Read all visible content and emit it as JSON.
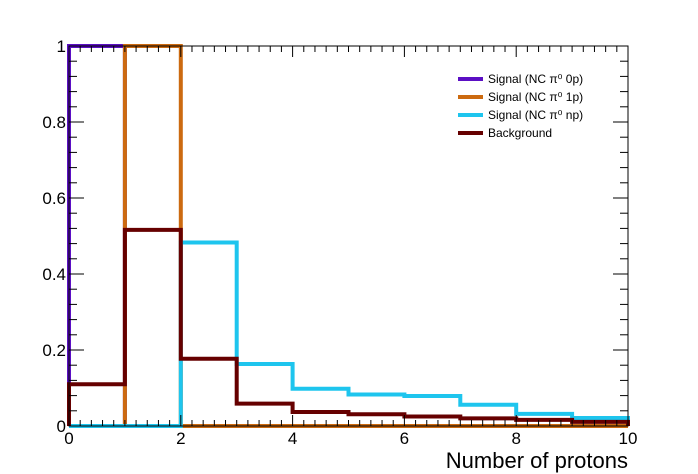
{
  "chart_data": {
    "type": "line",
    "title": "",
    "xlabel": "Number of protons",
    "ylabel": "",
    "xlim": [
      0,
      10
    ],
    "ylim": [
      0,
      1.0
    ],
    "grid": false,
    "legend_position": "top-right",
    "x_ticks": [
      "0",
      "2",
      "4",
      "6",
      "8",
      "10"
    ],
    "y_ticks": [
      "0",
      "0.2",
      "0.4",
      "0.6",
      "0.8",
      "1"
    ],
    "bin_edges": [
      0,
      1,
      2,
      3,
      4,
      5,
      6,
      7,
      8,
      9,
      10
    ],
    "series": [
      {
        "name": "Signal (NC π⁰ 0p)",
        "color": "#5b0fc4",
        "values": [
          1.0,
          0,
          0,
          0,
          0,
          0,
          0,
          0,
          0,
          0
        ]
      },
      {
        "name": "Signal (NC π⁰ 1p)",
        "color": "#cc6a10",
        "values": [
          0,
          1.0,
          0,
          0,
          0,
          0,
          0,
          0,
          0,
          0
        ]
      },
      {
        "name": "Signal (NC π⁰ np)",
        "color": "#1ec5ee",
        "values": [
          0,
          0,
          0.483,
          0.163,
          0.098,
          0.083,
          0.079,
          0.056,
          0.032,
          0.021
        ]
      },
      {
        "name": "Background",
        "color": "#660000",
        "values": [
          0.11,
          0.516,
          0.177,
          0.059,
          0.037,
          0.031,
          0.025,
          0.02,
          0.016,
          0.011
        ]
      }
    ]
  }
}
